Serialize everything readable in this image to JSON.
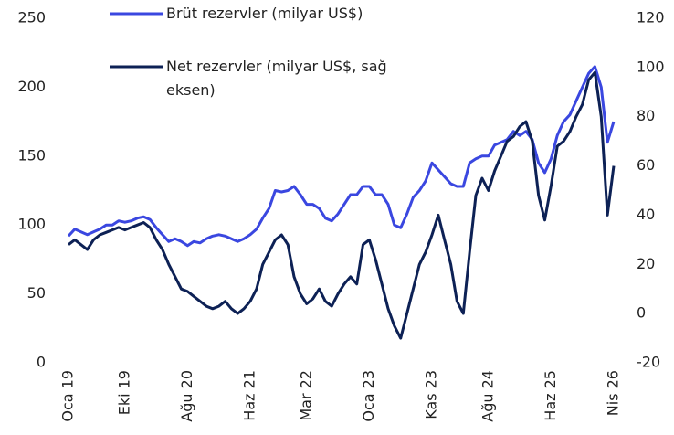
{
  "chart_data": {
    "type": "line",
    "categories": [
      "Oca 19",
      null,
      null,
      null,
      null,
      null,
      null,
      null,
      null,
      "Eki 19",
      null,
      null,
      null,
      null,
      null,
      null,
      null,
      null,
      null,
      "Ağu 20",
      null,
      null,
      null,
      null,
      null,
      null,
      null,
      null,
      null,
      "Haz 21",
      null,
      null,
      null,
      null,
      null,
      null,
      null,
      null,
      "Mar 22",
      null,
      null,
      null,
      null,
      null,
      null,
      null,
      null,
      null,
      "Oca 23",
      null,
      null,
      null,
      null,
      null,
      null,
      null,
      null,
      null,
      "Kas 23",
      null,
      null,
      null,
      null,
      null,
      null,
      null,
      null,
      "Ağu 24",
      null,
      null,
      null,
      null,
      null,
      null,
      null,
      null,
      null,
      "Haz 25",
      null,
      null,
      null,
      null,
      null,
      null,
      null,
      null,
      null,
      "Nis 26"
    ],
    "series": [
      {
        "name": "Brüt rezervler (milyar US$)",
        "color": "#3a47e0",
        "axis": "y",
        "values": [
          92,
          97,
          95,
          93,
          95,
          97,
          100,
          100,
          103,
          102,
          103,
          105,
          106,
          104,
          98,
          93,
          88,
          90,
          88,
          85,
          88,
          87,
          90,
          92,
          93,
          92,
          90,
          88,
          90,
          93,
          97,
          105,
          112,
          125,
          124,
          125,
          128,
          122,
          115,
          115,
          112,
          105,
          103,
          108,
          115,
          122,
          122,
          128,
          128,
          122,
          122,
          115,
          100,
          98,
          108,
          120,
          125,
          132,
          145,
          140,
          135,
          130,
          128,
          128,
          145,
          148,
          150,
          150,
          158,
          160,
          162,
          168,
          165,
          168,
          162,
          145,
          138,
          148,
          165,
          175,
          180,
          190,
          200,
          210,
          215,
          200,
          160,
          175
        ]
      },
      {
        "name": "Net rezervler (milyar US$, sağ eksen)",
        "color": "#0d2155",
        "axis": "y2",
        "values": [
          28,
          30,
          28,
          26,
          30,
          32,
          33,
          34,
          35,
          34,
          35,
          36,
          37,
          35,
          30,
          26,
          20,
          15,
          10,
          9,
          7,
          5,
          3,
          2,
          3,
          5,
          2,
          0,
          2,
          5,
          10,
          20,
          25,
          30,
          32,
          28,
          15,
          8,
          4,
          6,
          10,
          5,
          3,
          8,
          12,
          15,
          12,
          28,
          30,
          22,
          12,
          2,
          -5,
          -10,
          0,
          10,
          20,
          25,
          32,
          40,
          30,
          20,
          5,
          0,
          25,
          48,
          55,
          50,
          58,
          64,
          70,
          72,
          76,
          78,
          70,
          48,
          38,
          52,
          68,
          70,
          74,
          80,
          85,
          95,
          98,
          80,
          40,
          60
        ]
      }
    ],
    "ylim": [
      0,
      250
    ],
    "yticks": [
      0,
      50,
      100,
      150,
      200,
      250
    ],
    "y2lim": [
      -20,
      120
    ],
    "y2ticks": [
      -20,
      0,
      20,
      40,
      60,
      80,
      100,
      120
    ],
    "grid": false
  }
}
